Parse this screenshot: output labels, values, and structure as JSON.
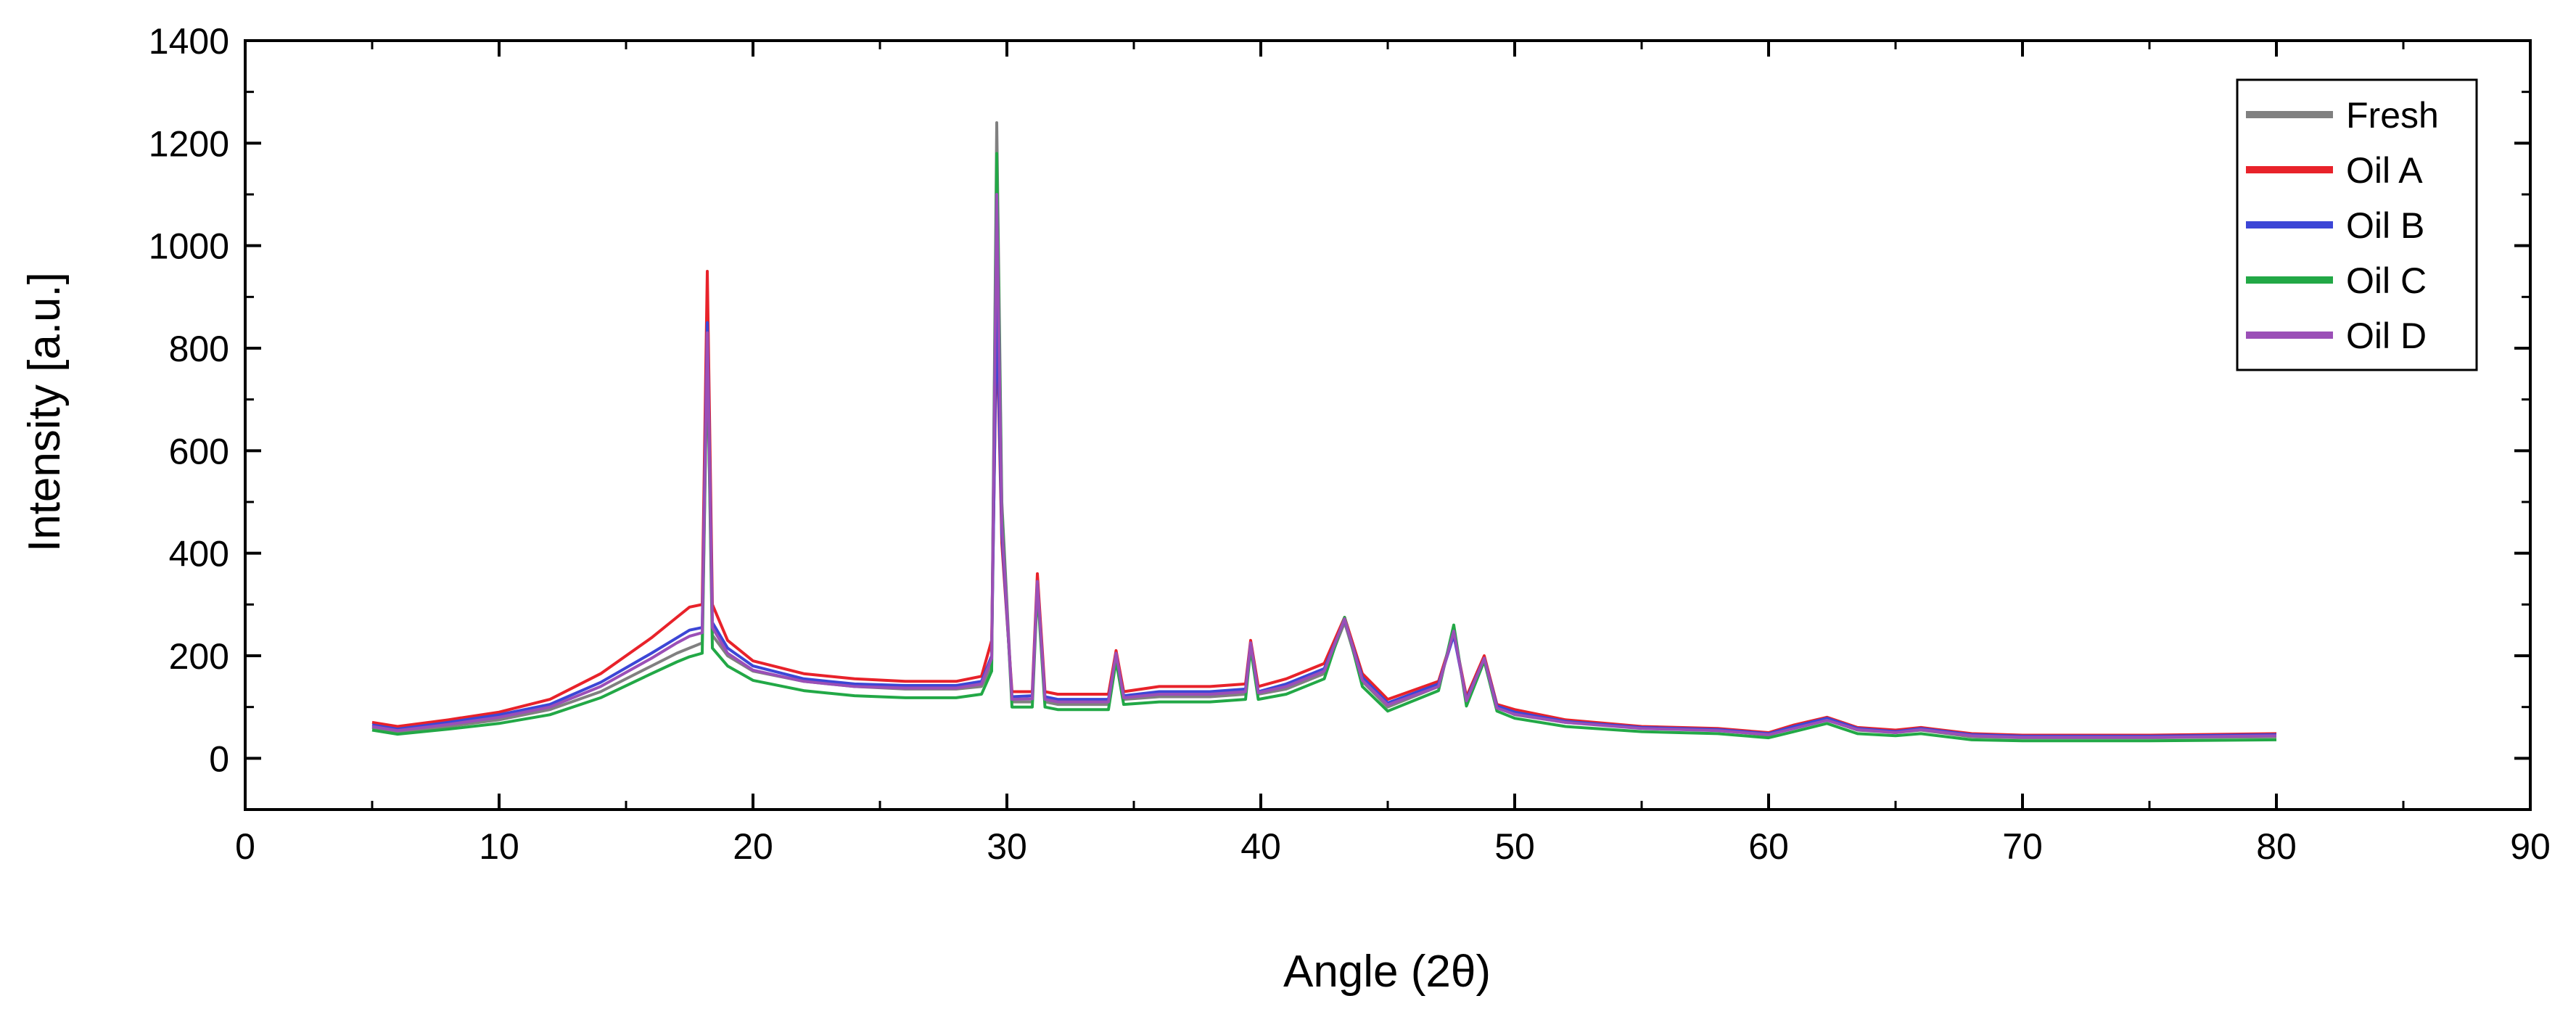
{
  "chart_data": {
    "type": "line",
    "title": "",
    "xlabel": "Angle (2θ)",
    "ylabel": "Intensity [a.u.]",
    "xlim": [
      0,
      90
    ],
    "ylim": [
      -100,
      1400
    ],
    "x_ticks": [
      0,
      10,
      20,
      30,
      40,
      50,
      60,
      70,
      80,
      90
    ],
    "x_tick_labels": [
      "0",
      "10",
      "20",
      "30",
      "40",
      "50",
      "60",
      "70",
      "80",
      "90"
    ],
    "y_ticks": [
      0,
      200,
      400,
      600,
      800,
      1000,
      1200,
      1400
    ],
    "y_tick_labels": [
      "0",
      "200",
      "400",
      "600",
      "800",
      "1000",
      "1200",
      "1400"
    ],
    "grid": false,
    "legend_position": "top-right",
    "x": [
      5,
      6,
      8,
      10,
      12,
      14,
      16,
      17,
      17.5,
      18,
      18.2,
      18.4,
      19,
      20,
      22,
      24,
      26,
      28,
      29,
      29.4,
      29.6,
      29.8,
      30.2,
      31,
      31.2,
      31.5,
      32,
      34,
      34.3,
      34.6,
      36,
      38,
      39.4,
      39.6,
      39.9,
      41,
      42.5,
      43.3,
      44,
      45,
      47,
      47.6,
      48.1,
      48.8,
      49.3,
      50,
      52,
      55,
      58,
      60,
      61,
      62.3,
      63.5,
      65,
      66,
      68,
      70,
      75,
      80
    ],
    "series": [
      {
        "name": "Fresh",
        "color": "#808080",
        "values": [
          60,
          52,
          62,
          75,
          95,
          130,
          180,
          205,
          215,
          225,
          810,
          240,
          200,
          170,
          150,
          140,
          135,
          135,
          140,
          180,
          1240,
          500,
          110,
          110,
          350,
          110,
          105,
          105,
          200,
          115,
          120,
          120,
          125,
          220,
          125,
          135,
          165,
          265,
          150,
          100,
          140,
          250,
          110,
          195,
          100,
          85,
          70,
          60,
          55,
          45,
          60,
          75,
          55,
          50,
          55,
          42,
          40,
          40,
          42
        ]
      },
      {
        "name": "Oil A",
        "color": "#e8222a",
        "values": [
          70,
          62,
          75,
          90,
          115,
          165,
          235,
          275,
          295,
          300,
          950,
          300,
          230,
          190,
          165,
          155,
          150,
          150,
          160,
          230,
          860,
          420,
          130,
          130,
          360,
          130,
          125,
          125,
          210,
          130,
          140,
          140,
          145,
          230,
          140,
          155,
          185,
          275,
          165,
          115,
          150,
          245,
          120,
          200,
          105,
          95,
          75,
          62,
          58,
          50,
          65,
          80,
          60,
          55,
          60,
          48,
          45,
          45,
          48
        ]
      },
      {
        "name": "Oil B",
        "color": "#3c46d6",
        "values": [
          65,
          57,
          70,
          85,
          105,
          148,
          205,
          235,
          250,
          255,
          850,
          265,
          215,
          180,
          155,
          145,
          142,
          142,
          150,
          200,
          900,
          440,
          120,
          122,
          340,
          120,
          115,
          115,
          200,
          122,
          130,
          130,
          135,
          225,
          130,
          145,
          175,
          270,
          158,
          108,
          145,
          240,
          115,
          195,
          102,
          90,
          72,
          60,
          56,
          48,
          62,
          78,
          58,
          52,
          58,
          46,
          43,
          43,
          46
        ]
      },
      {
        "name": "Oil C",
        "color": "#22a846",
        "values": [
          55,
          47,
          57,
          68,
          85,
          118,
          165,
          188,
          198,
          205,
          800,
          215,
          180,
          152,
          132,
          122,
          118,
          118,
          125,
          170,
          1180,
          480,
          100,
          100,
          330,
          100,
          95,
          95,
          190,
          105,
          110,
          110,
          115,
          215,
          115,
          125,
          155,
          275,
          140,
          92,
          132,
          260,
          102,
          190,
          92,
          78,
          62,
          52,
          48,
          40,
          52,
          68,
          48,
          44,
          48,
          36,
          34,
          34,
          36
        ]
      },
      {
        "name": "Oil D",
        "color": "#9b4fb7",
        "values": [
          62,
          54,
          66,
          80,
          100,
          140,
          195,
          225,
          238,
          245,
          830,
          255,
          205,
          172,
          150,
          140,
          137,
          137,
          145,
          195,
          1100,
          460,
          115,
          116,
          345,
          115,
          110,
          110,
          205,
          118,
          125,
          125,
          130,
          225,
          128,
          140,
          170,
          272,
          152,
          104,
          140,
          248,
          112,
          195,
          98,
          86,
          70,
          58,
          54,
          46,
          58,
          74,
          56,
          50,
          56,
          44,
          41,
          41,
          44
        ]
      }
    ]
  }
}
